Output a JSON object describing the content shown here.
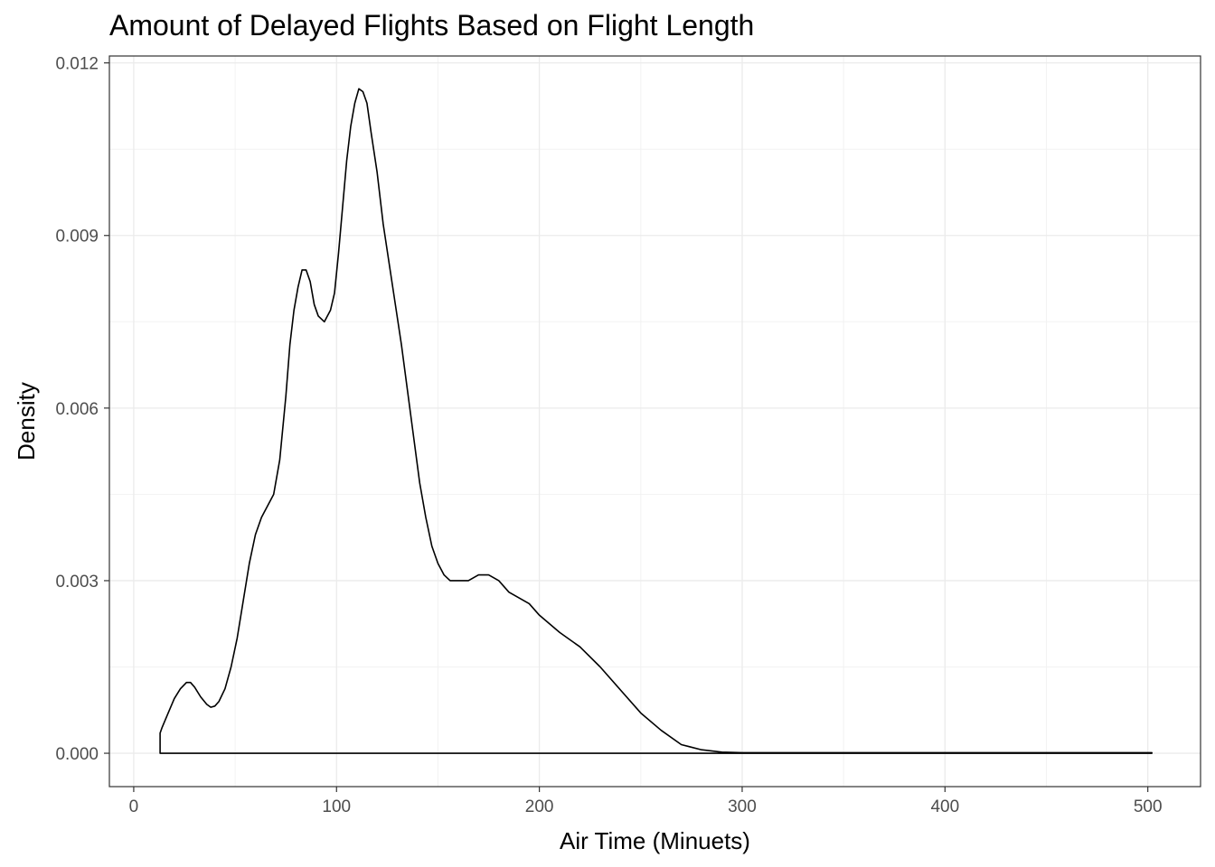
{
  "chart_data": {
    "type": "area",
    "title": "Amount of Delayed Flights Based on Flight Length",
    "xlabel": "Air Time (Minuets)",
    "ylabel": "Density",
    "xlim": [
      -12,
      526
    ],
    "ylim": [
      -0.00058,
      0.01212
    ],
    "x_ticks": [
      0,
      100,
      200,
      300,
      400,
      500
    ],
    "x_tick_labels": [
      "0",
      "100",
      "200",
      "300",
      "400",
      "500"
    ],
    "y_ticks": [
      0.0,
      0.003,
      0.006,
      0.009,
      0.012
    ],
    "y_tick_labels": [
      "0.000",
      "0.003",
      "0.006",
      "0.009",
      "0.012"
    ],
    "grid": true,
    "series": [
      {
        "x": [
          13,
          14,
          17,
          20,
          23,
          26,
          28,
          30,
          33,
          36,
          38,
          40,
          42,
          45,
          48,
          51,
          54,
          57,
          60,
          63,
          66,
          69,
          72,
          75,
          77,
          79,
          81,
          83,
          85,
          87,
          89,
          91,
          94,
          97,
          99,
          101,
          103,
          105,
          107,
          109,
          111,
          113,
          115,
          117,
          120,
          123,
          126,
          129,
          132,
          135,
          138,
          141,
          144,
          147,
          150,
          153,
          156,
          160,
          165,
          170,
          175,
          180,
          185,
          190,
          195,
          200,
          210,
          220,
          230,
          240,
          250,
          260,
          270,
          280,
          290,
          300,
          310,
          320,
          340,
          360,
          380,
          400,
          420,
          440,
          460,
          480,
          502
        ],
        "y": [
          0.00035,
          0.00045,
          0.0007,
          0.00095,
          0.00112,
          0.00123,
          0.00123,
          0.00115,
          0.00098,
          0.00085,
          0.0008,
          0.00082,
          0.0009,
          0.00112,
          0.0015,
          0.002,
          0.00265,
          0.0033,
          0.0038,
          0.0041,
          0.0043,
          0.0045,
          0.0051,
          0.0062,
          0.0071,
          0.0077,
          0.0081,
          0.0084,
          0.0084,
          0.0082,
          0.0078,
          0.0076,
          0.0075,
          0.0077,
          0.008,
          0.0087,
          0.0095,
          0.0103,
          0.0109,
          0.0113,
          0.01155,
          0.0115,
          0.0113,
          0.0108,
          0.0101,
          0.0092,
          0.0085,
          0.0078,
          0.0071,
          0.0063,
          0.0055,
          0.0047,
          0.0041,
          0.0036,
          0.0033,
          0.0031,
          0.003,
          0.003,
          0.003,
          0.0031,
          0.0031,
          0.003,
          0.0028,
          0.0027,
          0.0026,
          0.0024,
          0.0021,
          0.00185,
          0.0015,
          0.0011,
          0.0007,
          0.0004,
          0.00015,
          6e-05,
          2e-05,
          1e-05,
          1e-05,
          1e-05,
          1e-05,
          1e-05,
          1e-05,
          1e-05,
          1e-05,
          1e-05,
          1e-05,
          1e-05,
          1e-05
        ]
      }
    ]
  }
}
